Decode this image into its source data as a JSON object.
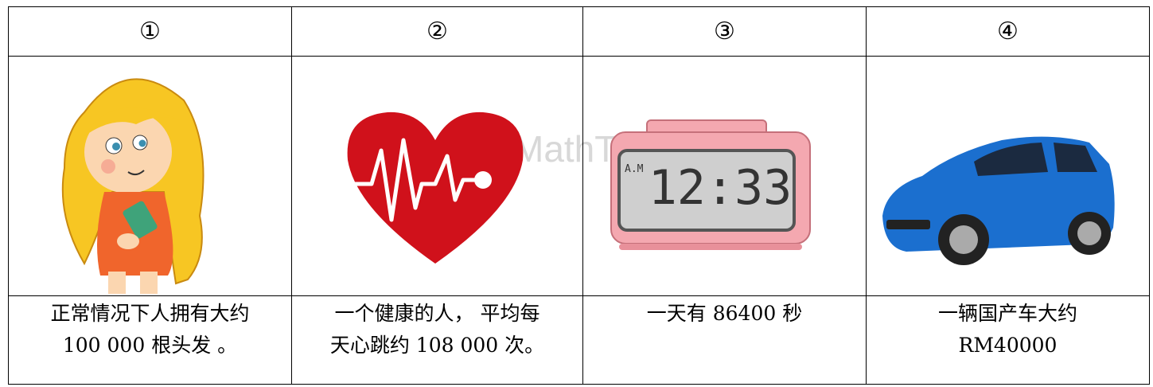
{
  "table": {
    "header": [
      "①",
      "②",
      "③",
      "④"
    ],
    "captions": [
      [
        "正常情况下人拥有大约",
        "100 000 根头发 。"
      ],
      [
        "一个健康的人， 平均每",
        "天心跳约 108 000 次。"
      ],
      [
        "一天有 86400 秒"
      ],
      [
        "一辆国产车大约",
        "RM40000"
      ]
    ]
  },
  "watermark": "MathT",
  "clock_display": {
    "ampm": "A.M",
    "time": "12:33"
  }
}
